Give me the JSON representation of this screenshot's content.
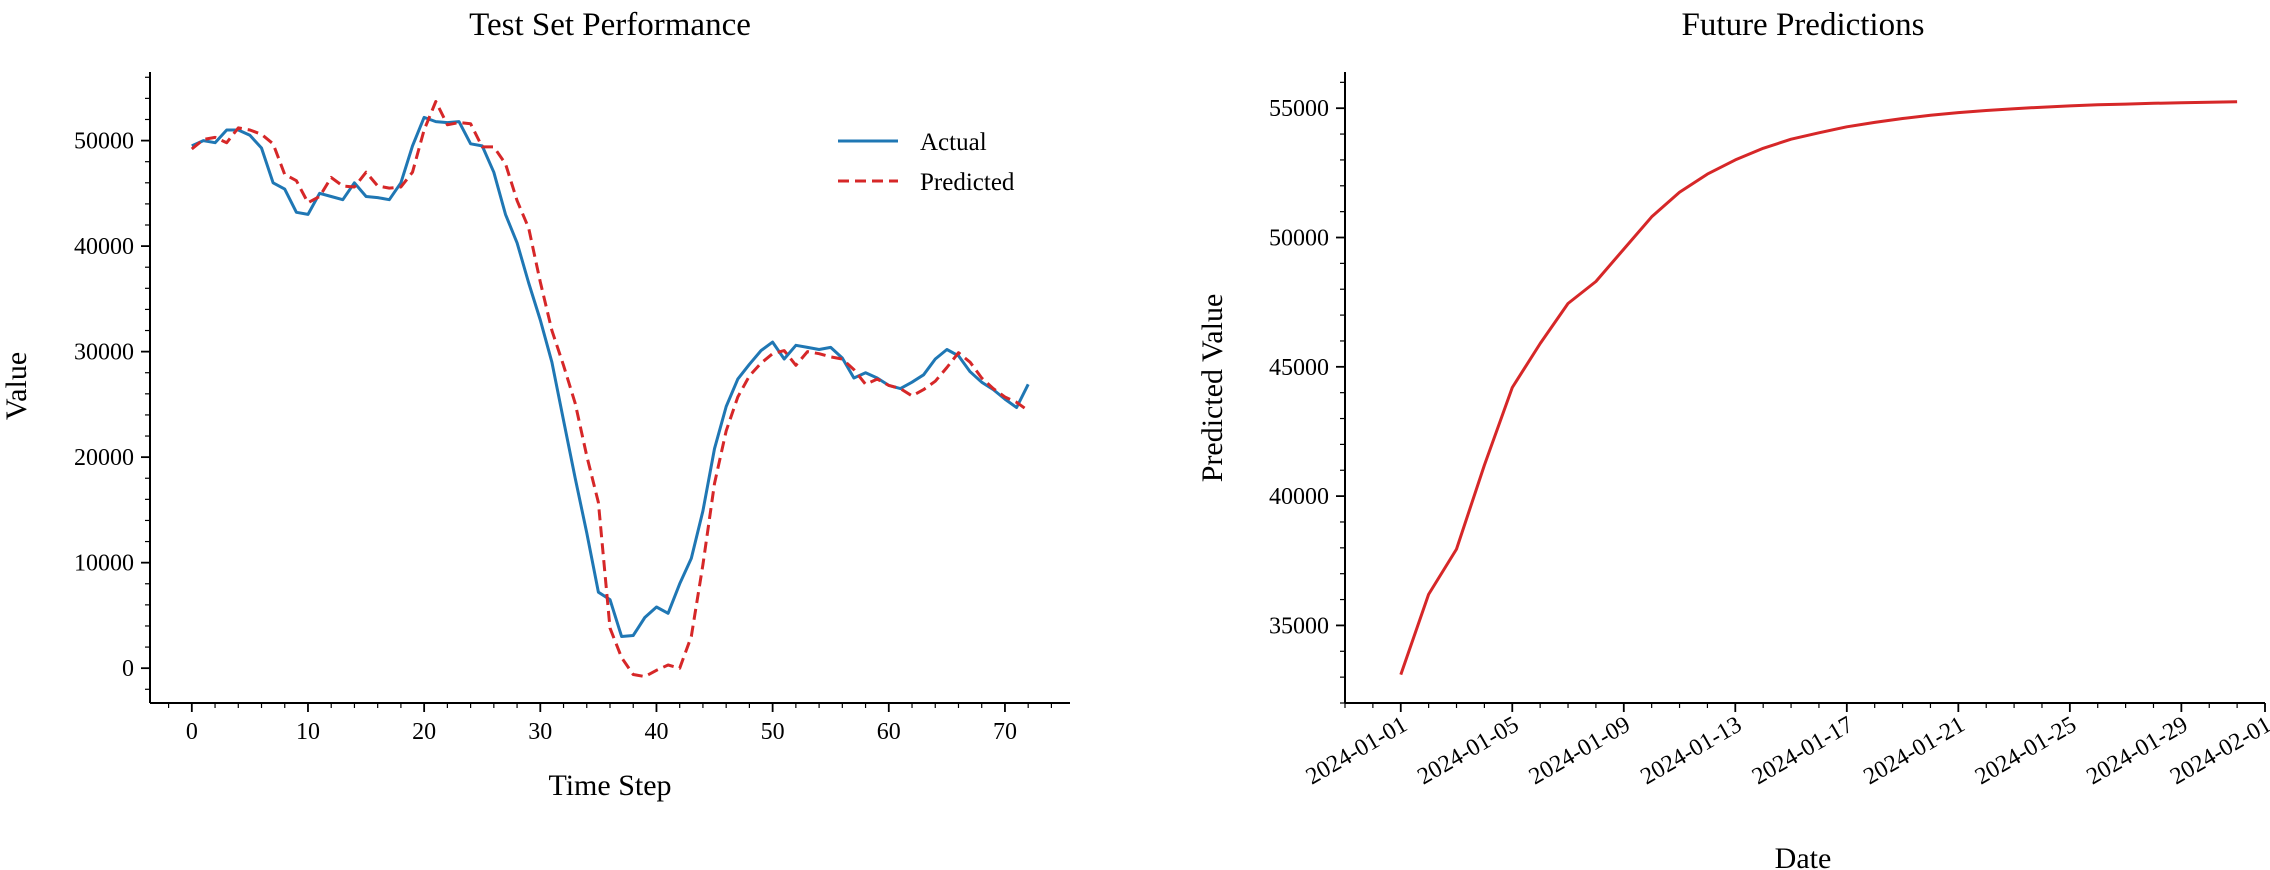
{
  "chart_data": [
    {
      "type": "line",
      "title": "Test Set Performance",
      "xlabel": "Time Step",
      "ylabel": "Value",
      "xlim": [
        -3.6,
        75.6
      ],
      "ylim": [
        -3300,
        56500
      ],
      "xticks": [
        0,
        10,
        20,
        30,
        40,
        50,
        60,
        70
      ],
      "yticks": [
        0,
        10000,
        20000,
        30000,
        40000,
        50000
      ],
      "grid": false,
      "legend": "upper right",
      "series": [
        {
          "name": "Actual",
          "color": "#1f77b4",
          "dash": "solid",
          "x": [
            0,
            1,
            2,
            3,
            4,
            5,
            6,
            7,
            8,
            9,
            10,
            11,
            12,
            13,
            14,
            15,
            16,
            17,
            18,
            19,
            20,
            21,
            22,
            23,
            24,
            25,
            26,
            27,
            28,
            29,
            30,
            31,
            32,
            33,
            34,
            35,
            36,
            37,
            38,
            39,
            40,
            41,
            42,
            43,
            44,
            45,
            46,
            47,
            48,
            49,
            50,
            51,
            52,
            53,
            54,
            55,
            56,
            57,
            58,
            59,
            60,
            61,
            62,
            63,
            64,
            65,
            66,
            67,
            68,
            69,
            70,
            71,
            72
          ],
          "values": [
            49500,
            50000,
            49800,
            51000,
            51000,
            50500,
            49300,
            46000,
            45400,
            43200,
            43000,
            45000,
            44700,
            44400,
            46000,
            44700,
            44600,
            44400,
            46000,
            49500,
            52200,
            51800,
            51700,
            51800,
            49700,
            49500,
            47000,
            43000,
            40300,
            36500,
            33000,
            29000,
            23500,
            18000,
            12800,
            7200,
            6500,
            3000,
            3100,
            4800,
            5800,
            5200,
            8000,
            10400,
            14900,
            20800,
            24800,
            27400,
            28800,
            30100,
            30900,
            29300,
            30600,
            30400,
            30200,
            30400,
            29400,
            27500,
            28000,
            27500,
            26800,
            26500,
            27100,
            27800,
            29300,
            30200,
            29600,
            28100,
            27100,
            26400,
            25500,
            24700,
            26900
          ]
        },
        {
          "name": "Predicted",
          "color": "#d62728",
          "dash": "dashed",
          "x": [
            0,
            1,
            2,
            3,
            4,
            5,
            6,
            7,
            8,
            9,
            10,
            11,
            12,
            13,
            14,
            15,
            16,
            17,
            18,
            19,
            20,
            21,
            22,
            23,
            24,
            25,
            26,
            27,
            28,
            29,
            30,
            31,
            32,
            33,
            34,
            35,
            36,
            37,
            38,
            39,
            40,
            41,
            42,
            43,
            44,
            45,
            46,
            47,
            48,
            49,
            50,
            51,
            52,
            53,
            54,
            55,
            56,
            57,
            58,
            59,
            60,
            61,
            62,
            63,
            64,
            65,
            66,
            67,
            68,
            69,
            70,
            71,
            72
          ],
          "values": [
            49200,
            50100,
            50300,
            49800,
            51200,
            51000,
            50600,
            49700,
            46800,
            46200,
            44100,
            44700,
            46500,
            45700,
            45600,
            47000,
            45700,
            45500,
            45600,
            47000,
            51000,
            53700,
            51500,
            51700,
            51600,
            49400,
            49400,
            47800,
            44300,
            41700,
            36600,
            32000,
            28700,
            25100,
            20100,
            15700,
            3800,
            1000,
            -600,
            -800,
            -200,
            300,
            0,
            3000,
            9800,
            17500,
            22500,
            25700,
            27700,
            28900,
            29800,
            30100,
            28700,
            30000,
            29800,
            29500,
            29300,
            28300,
            26900,
            27400,
            26800,
            26500,
            25800,
            26400,
            27200,
            28500,
            29900,
            29000,
            27500,
            26500,
            25700,
            25200,
            24400
          ]
        }
      ]
    },
    {
      "type": "line",
      "title": "Future Predictions",
      "xlabel": "Date",
      "ylabel": "Predicted Value",
      "xlim": [
        "2023-12-30",
        "2024-02-01"
      ],
      "ylim": [
        32000,
        56400
      ],
      "xticks": [
        "2024-01-01",
        "2024-01-05",
        "2024-01-09",
        "2024-01-13",
        "2024-01-17",
        "2024-01-21",
        "2024-01-25",
        "2024-01-29",
        "2024-02-01"
      ],
      "yticks": [
        35000,
        40000,
        45000,
        50000,
        55000
      ],
      "grid": false,
      "series": [
        {
          "color": "#d62728",
          "dash": "solid",
          "x": [
            "2024-01-01",
            "2024-01-02",
            "2024-01-03",
            "2024-01-04",
            "2024-01-05",
            "2024-01-06",
            "2024-01-07",
            "2024-01-08",
            "2024-01-09",
            "2024-01-10",
            "2024-01-11",
            "2024-01-12",
            "2024-01-13",
            "2024-01-14",
            "2024-01-15",
            "2024-01-16",
            "2024-01-17",
            "2024-01-18",
            "2024-01-19",
            "2024-01-20",
            "2024-01-21",
            "2024-01-22",
            "2024-01-23",
            "2024-01-24",
            "2024-01-25",
            "2024-01-26",
            "2024-01-27",
            "2024-01-28",
            "2024-01-29",
            "2024-01-30",
            "2024-01-31"
          ],
          "values": [
            33100,
            36200,
            37950,
            41200,
            44200,
            45900,
            47450,
            48300,
            49550,
            50800,
            51750,
            52450,
            53000,
            53450,
            53800,
            54050,
            54280,
            54450,
            54600,
            54730,
            54830,
            54910,
            54980,
            55040,
            55090,
            55130,
            55160,
            55190,
            55210,
            55230,
            55250
          ]
        }
      ]
    }
  ]
}
